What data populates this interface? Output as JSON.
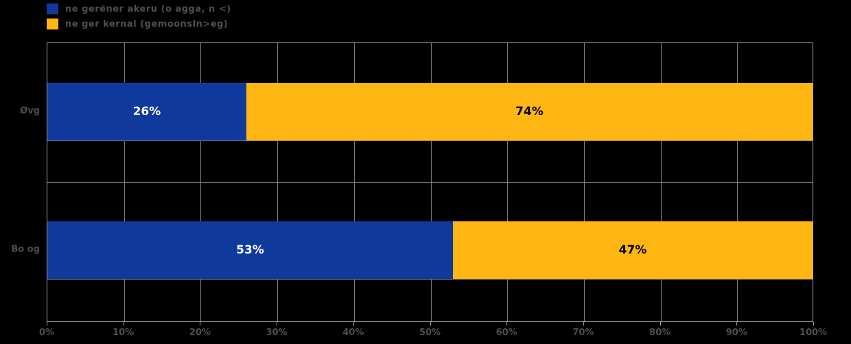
{
  "legend": {
    "items": [
      {
        "label": "ne gerëner akeru (o agga, n <)",
        "color": "#10399E"
      },
      {
        "label": "ne ger kernal (gemoonsln>eg)",
        "color": "#FFB612"
      }
    ],
    "note": "legend and axis text is ghosted/anti-aliased and only partially legible; labels are best-effort transcriptions"
  },
  "chart_data": {
    "type": "bar",
    "orientation": "horizontal",
    "stacked": true,
    "title": "",
    "xlabel": "",
    "ylabel": "",
    "categories": [
      "Øvg",
      "Bo og"
    ],
    "series": [
      {
        "name": "ne gerëner akeru (o agga, n <)",
        "color": "#10399E",
        "label_color": "#FFFFFF",
        "values": [
          26,
          53
        ]
      },
      {
        "name": "ne ger kernal (gemoonsln>eg)",
        "color": "#FFB612",
        "label_color": "#000000",
        "values": [
          74,
          47
        ]
      }
    ],
    "bar_labels": [
      [
        "26%",
        "74%"
      ],
      [
        "53%",
        "47%"
      ]
    ],
    "x_ticks": [
      "0%",
      "10%",
      "20%",
      "30%",
      "40%",
      "50%",
      "60%",
      "70%",
      "80%",
      "90%",
      "100%"
    ],
    "xlim": [
      0,
      100
    ],
    "grid": true,
    "legend_position": "top-left",
    "background": "#000000",
    "grid_color": "#7a7a7a",
    "text_color": "#4e4e4e"
  }
}
